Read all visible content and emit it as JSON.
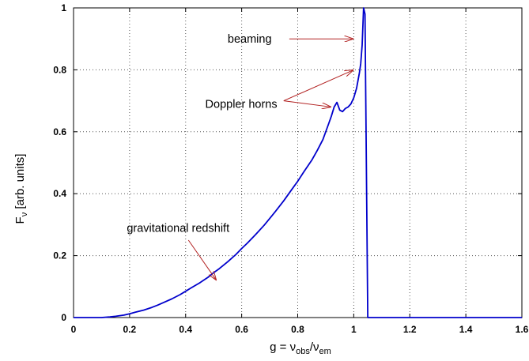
{
  "chart_data": {
    "type": "line",
    "xlim": [
      0,
      1.6
    ],
    "ylim": [
      0,
      1
    ],
    "grid": true,
    "grid_style": "dotted",
    "legend": "none",
    "x_ticks": [
      {
        "value": 0,
        "label": "0"
      },
      {
        "value": 0.2,
        "label": "0.2"
      },
      {
        "value": 0.4,
        "label": "0.4"
      },
      {
        "value": 0.6,
        "label": "0.6"
      },
      {
        "value": 0.8,
        "label": "0.8"
      },
      {
        "value": 1.0,
        "label": "1"
      },
      {
        "value": 1.2,
        "label": "1.2"
      },
      {
        "value": 1.4,
        "label": "1.4"
      },
      {
        "value": 1.6,
        "label": "1.6"
      }
    ],
    "y_ticks": [
      {
        "value": 0,
        "label": "0"
      },
      {
        "value": 0.2,
        "label": "0.2"
      },
      {
        "value": 0.4,
        "label": "0.4"
      },
      {
        "value": 0.6,
        "label": "0.6"
      },
      {
        "value": 0.8,
        "label": "0.8"
      },
      {
        "value": 1,
        "label": "1"
      }
    ],
    "xlabel": {
      "prefix": "g = ν",
      "sub1": "obs",
      "mid": "/ν",
      "sub2": "em"
    },
    "ylabel": {
      "prefix": "F",
      "sub": "ν",
      "suffix": " [arb. units]"
    },
    "series": [
      {
        "color": "#0000cc",
        "x": [
          0,
          0.1,
          0.13,
          0.15,
          0.18,
          0.2,
          0.22,
          0.25,
          0.28,
          0.3,
          0.32,
          0.35,
          0.38,
          0.4,
          0.42,
          0.45,
          0.48,
          0.5,
          0.52,
          0.55,
          0.58,
          0.6,
          0.62,
          0.65,
          0.68,
          0.7,
          0.72,
          0.75,
          0.78,
          0.8,
          0.82,
          0.85,
          0.87,
          0.89,
          0.91,
          0.92,
          0.93,
          0.94,
          0.95,
          0.96,
          0.97,
          0.98,
          0.99,
          1.0,
          1.01,
          1.02,
          1.025,
          1.03,
          1.035,
          1.04,
          1.045,
          1.05,
          1.6
        ],
        "y": [
          0,
          0,
          0.002,
          0.004,
          0.008,
          0.012,
          0.017,
          0.024,
          0.033,
          0.04,
          0.048,
          0.06,
          0.074,
          0.085,
          0.096,
          0.112,
          0.13,
          0.145,
          0.158,
          0.18,
          0.204,
          0.223,
          0.24,
          0.268,
          0.298,
          0.32,
          0.342,
          0.377,
          0.415,
          0.44,
          0.468,
          0.508,
          0.54,
          0.575,
          0.625,
          0.65,
          0.68,
          0.695,
          0.67,
          0.665,
          0.675,
          0.68,
          0.69,
          0.71,
          0.74,
          0.79,
          0.82,
          0.88,
          1.0,
          0.98,
          0.5,
          0,
          0
        ]
      }
    ],
    "annotations": [
      {
        "text": "beaming",
        "text_x": 0.55,
        "text_y": 0.9,
        "arrows": [
          {
            "from_x": 0.77,
            "from_y": 0.9,
            "to_x": 1.0,
            "to_y": 0.9
          }
        ]
      },
      {
        "text": "Doppler horns",
        "text_x": 0.47,
        "text_y": 0.69,
        "arrows": [
          {
            "from_x": 0.75,
            "from_y": 0.7,
            "to_x": 1.0,
            "to_y": 0.8
          },
          {
            "from_x": 0.75,
            "from_y": 0.7,
            "to_x": 0.92,
            "to_y": 0.68
          }
        ]
      },
      {
        "text": "gravitational redshift",
        "text_x": 0.19,
        "text_y": 0.29,
        "arrows": [
          {
            "from_x": 0.41,
            "from_y": 0.25,
            "to_x": 0.51,
            "to_y": 0.12
          }
        ]
      }
    ]
  }
}
